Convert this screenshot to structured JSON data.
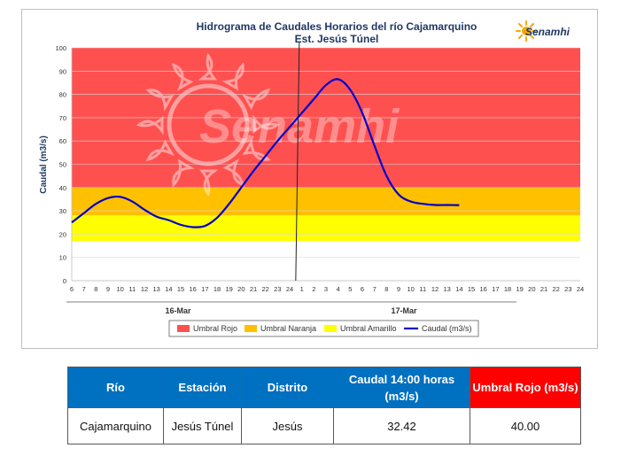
{
  "chart_data": {
    "type": "line",
    "title": "Hidrograma de Caudales Horarios del río Cajamarquino",
    "subtitle": "Est. Jesús Túnel",
    "ylabel": "Caudal  (m3/s)",
    "ylim": [
      0,
      100
    ],
    "yticks": [
      "0",
      "10",
      "20",
      "30",
      "40",
      "50",
      "60",
      "70",
      "80",
      "90",
      "100"
    ],
    "xticks": [
      "6",
      "7",
      "8",
      "9",
      "10",
      "11",
      "12",
      "13",
      "14",
      "15",
      "16",
      "17",
      "18",
      "19",
      "20",
      "21",
      "22",
      "23",
      "24",
      "1",
      "2",
      "3",
      "4",
      "5",
      "6",
      "7",
      "8",
      "9",
      "10",
      "11",
      "12",
      "13",
      "14",
      "15",
      "16",
      "17",
      "18",
      "19",
      "20",
      "21",
      "22",
      "23",
      "24"
    ],
    "day_labels": [
      "16-Mar",
      "17-Mar"
    ],
    "thresholds": [
      {
        "name": "Umbral Rojo",
        "from": 40,
        "to": 100,
        "color": "#ff5050"
      },
      {
        "name": "Umbral Naranja",
        "from": 28,
        "to": 40,
        "color": "#ffc000"
      },
      {
        "name": "Umbral Amarillo",
        "from": 17,
        "to": 28,
        "color": "#ffff00"
      }
    ],
    "series": [
      {
        "name": "Caudal (m3/s)",
        "color": "#0000cc",
        "values": [
          25,
          29,
          33,
          35.5,
          36,
          34,
          30.5,
          27.5,
          26,
          24,
          23,
          23.5,
          27,
          33,
          40,
          47,
          53.5,
          60,
          66,
          72,
          78,
          84,
          86.5,
          82,
          72,
          58,
          45,
          37,
          34,
          33,
          32.5,
          32.5,
          32.42
        ]
      }
    ]
  },
  "brand": {
    "logo_text": "Senamhi",
    "watermark_text": "Senamhi"
  },
  "table": {
    "headers": [
      "Río",
      "Estación",
      "Distrito",
      "Caudal  14:00 horas (m3/s)",
      "Umbral Rojo (m3/s)"
    ],
    "row": [
      "Cajamarquino",
      "Jesús Túnel",
      "Jesús",
      "32.42",
      "40.00"
    ]
  }
}
